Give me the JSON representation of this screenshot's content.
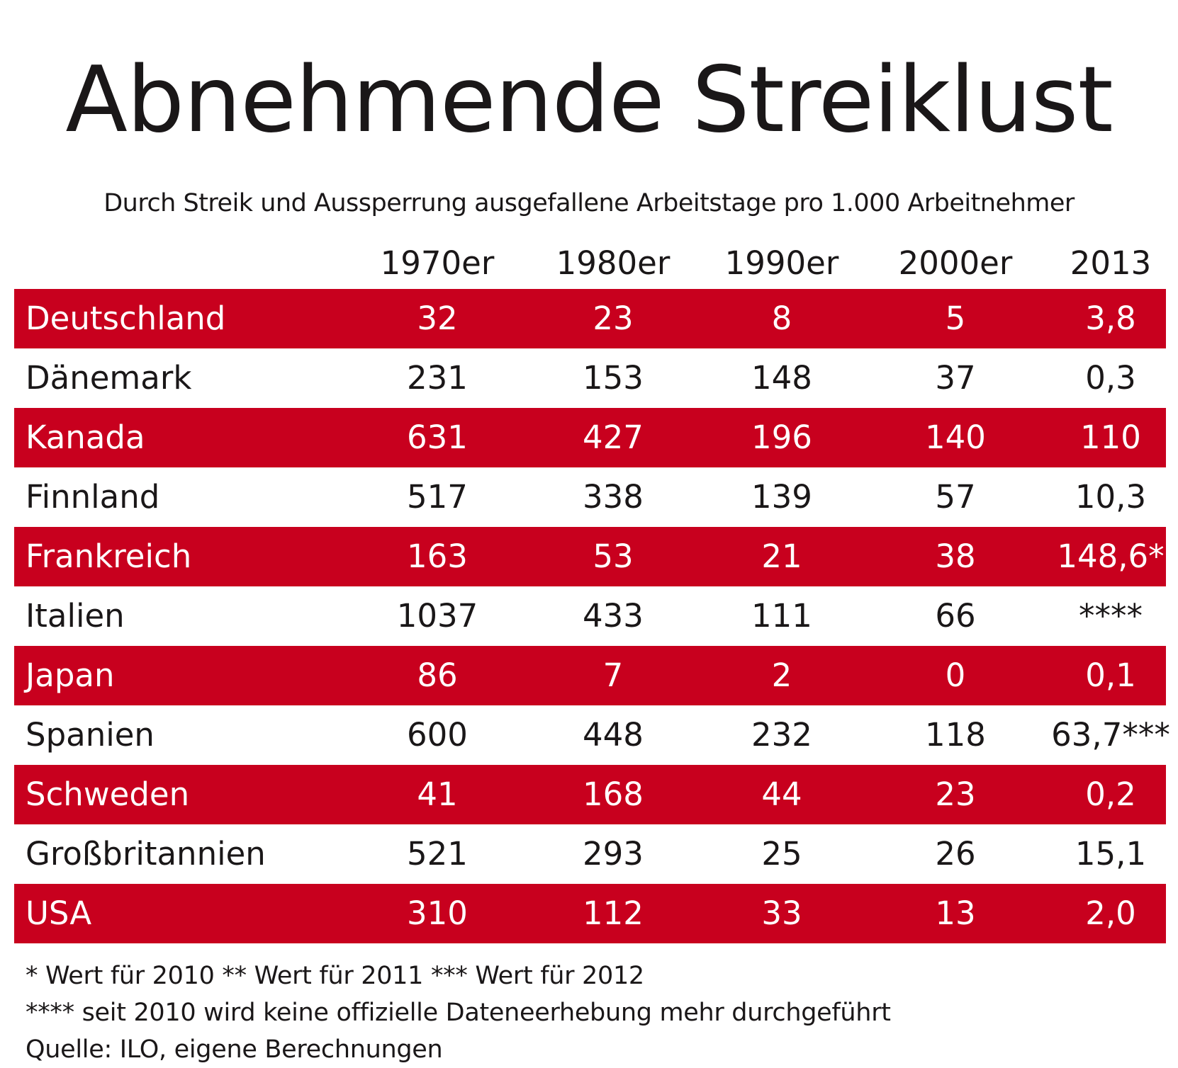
{
  "title": "Abnehmende Streiklust",
  "subtitle": "Durch Streik und Aussperrung ausgefallene Arbeitstage pro 1.000 Arbeitnehmer",
  "colors": {
    "stripe": "#c8001e",
    "text": "#1a1718"
  },
  "chart_data": {
    "type": "table",
    "title": "Abnehmende Streiklust",
    "subtitle": "Durch Streik und Aussperrung ausgefallene Arbeitstage pro 1.000 Arbeitnehmer",
    "columns": [
      "1970er",
      "1980er",
      "1990er",
      "2000er",
      "2013"
    ],
    "rows": [
      {
        "country": "Deutschland",
        "values": [
          "32",
          "23",
          "8",
          "5",
          "3,8"
        ]
      },
      {
        "country": "Dänemark",
        "values": [
          "231",
          "153",
          "148",
          "37",
          "0,3"
        ]
      },
      {
        "country": "Kanada",
        "values": [
          "631",
          "427",
          "196",
          "140",
          "110"
        ]
      },
      {
        "country": "Finnland",
        "values": [
          "517",
          "338",
          "139",
          "57",
          "10,3"
        ]
      },
      {
        "country": "Frankreich",
        "values": [
          "163",
          "53",
          "21",
          "38",
          "148,6*"
        ]
      },
      {
        "country": "Italien",
        "values": [
          "1037",
          "433",
          "111",
          "66",
          "****"
        ]
      },
      {
        "country": "Japan",
        "values": [
          "86",
          "7",
          "2",
          "0",
          "0,1"
        ]
      },
      {
        "country": "Spanien",
        "values": [
          "600",
          "448",
          "232",
          "118",
          "63,7***"
        ]
      },
      {
        "country": "Schweden",
        "values": [
          "41",
          "168",
          "44",
          "23",
          "0,2"
        ]
      },
      {
        "country": "Großbritannien",
        "values": [
          "521",
          "293",
          "25",
          "26",
          "15,1"
        ]
      },
      {
        "country": "USA",
        "values": [
          "310",
          "112",
          "33",
          "13",
          "2,0"
        ]
      }
    ]
  },
  "footnotes": [
    "* Wert für 2010 ** Wert für 2011 *** Wert für 2012",
    "**** seit 2010 wird keine offizielle Dateneerhebung mehr durchgeführt",
    "Quelle: ILO, eigene Berechnungen"
  ]
}
